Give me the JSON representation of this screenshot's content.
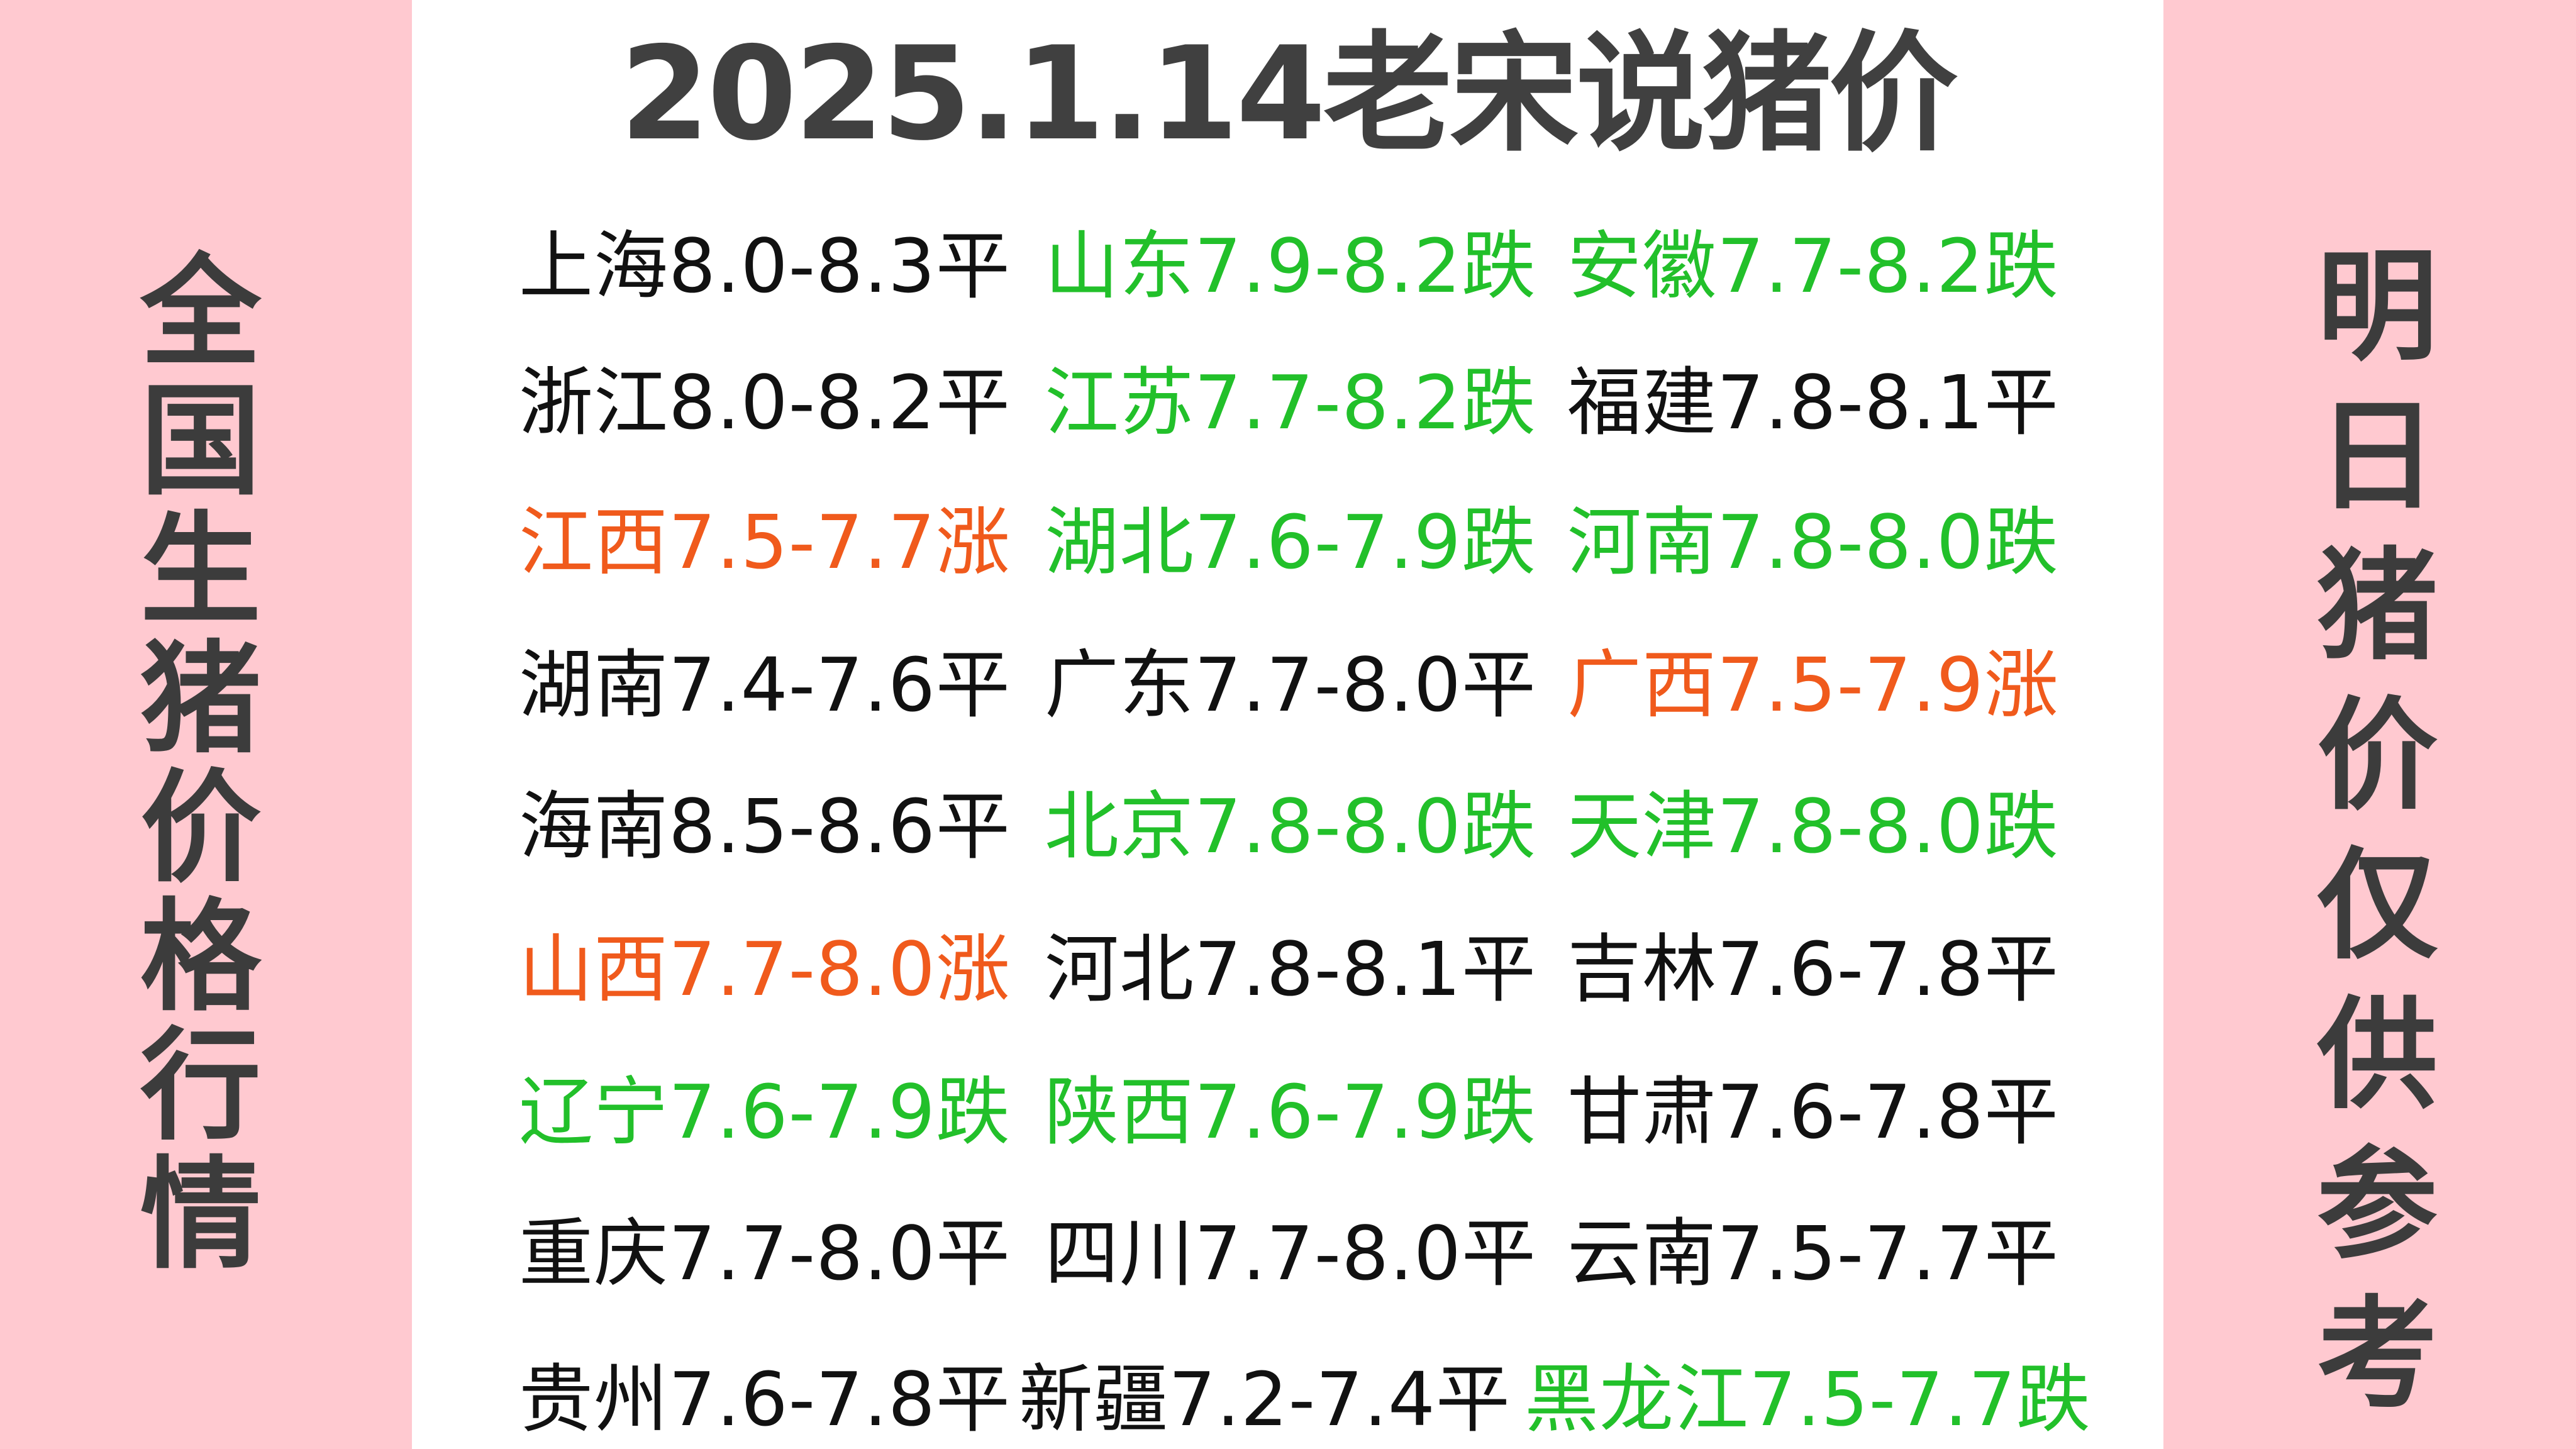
{
  "title": "2025.1.14老宋说猪价",
  "left_banner": "全国生猪价格行情",
  "right_banner": "明日猪价仅供参考",
  "colors": {
    "flat": "#111111",
    "down": "#22c02a",
    "up": "#f05a1c",
    "background": "#ffc9d0",
    "title": "#404040"
  },
  "rows": [
    [
      {
        "text": "上海8.0-8.3平",
        "trend": "flat"
      },
      {
        "text": "山东7.9-8.2跌",
        "trend": "down"
      },
      {
        "text": "安徽7.7-8.2跌",
        "trend": "down"
      }
    ],
    [
      {
        "text": "浙江8.0-8.2平",
        "trend": "flat"
      },
      {
        "text": "江苏7.7-8.2跌",
        "trend": "down"
      },
      {
        "text": "福建7.8-8.1平",
        "trend": "flat"
      }
    ],
    [
      {
        "text": "江西7.5-7.7涨",
        "trend": "up"
      },
      {
        "text": "湖北7.6-7.9跌",
        "trend": "down"
      },
      {
        "text": "河南7.8-8.0跌",
        "trend": "down"
      }
    ],
    [
      {
        "text": "湖南7.4-7.6平",
        "trend": "flat"
      },
      {
        "text": "广东7.7-8.0平",
        "trend": "flat"
      },
      {
        "text": "广西7.5-7.9涨",
        "trend": "up"
      }
    ],
    [
      {
        "text": "海南8.5-8.6平",
        "trend": "flat"
      },
      {
        "text": "北京7.8-8.0跌",
        "trend": "down"
      },
      {
        "text": "天津7.8-8.0跌",
        "trend": "down"
      }
    ],
    [
      {
        "text": "山西7.7-8.0涨",
        "trend": "up"
      },
      {
        "text": "河北7.8-8.1平",
        "trend": "flat"
      },
      {
        "text": "吉林7.6-7.8平",
        "trend": "flat"
      }
    ],
    [
      {
        "text": "辽宁7.6-7.9跌",
        "trend": "down"
      },
      {
        "text": "陕西7.6-7.9跌",
        "trend": "down"
      },
      {
        "text": "甘肃7.6-7.8平",
        "trend": "flat"
      }
    ],
    [
      {
        "text": "重庆7.7-8.0平",
        "trend": "flat"
      },
      {
        "text": "四川7.7-8.0平",
        "trend": "flat"
      },
      {
        "text": "云南7.5-7.7平",
        "trend": "flat"
      }
    ],
    [
      {
        "text": "贵州7.6-7.8平",
        "trend": "flat"
      },
      {
        "text": "新疆7.2-7.4平",
        "trend": "flat"
      },
      {
        "text": "黑龙江7.5-7.7跌",
        "trend": "down"
      }
    ]
  ]
}
